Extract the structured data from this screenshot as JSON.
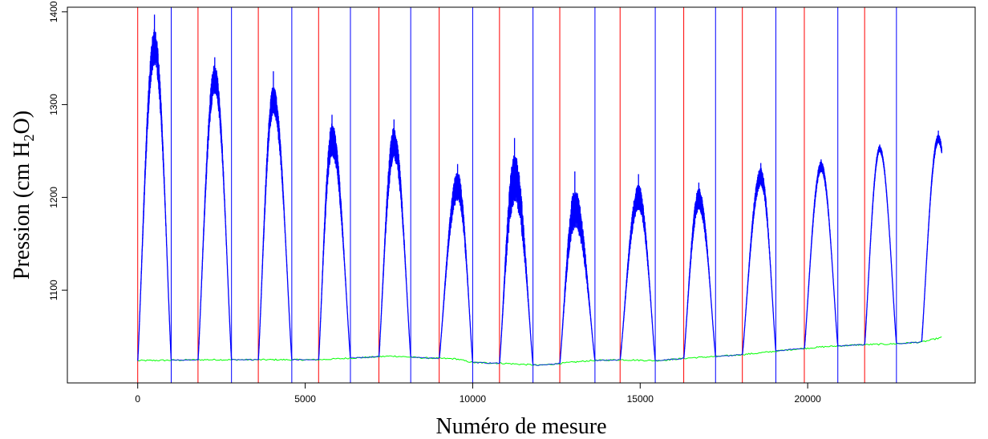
{
  "chart_data": {
    "type": "line",
    "title": "",
    "xlabel": "Numéro de mesure",
    "ylabel_text": "Pression (cm H",
    "ylabel_subscript": "2",
    "ylabel_suffix": "O)",
    "xlim": [
      -2100,
      25000
    ],
    "ylim": [
      1000,
      1405
    ],
    "xticks": [
      0,
      5000,
      10000,
      15000,
      20000
    ],
    "yticks": [
      1100,
      1200,
      1300,
      1400
    ],
    "grid": false,
    "legend": "none",
    "colors": {
      "pressure": "#0000ff",
      "baseline": "#00ff00",
      "cycle_start": "#ff0000",
      "cycle_end": "#0000ff",
      "axis": "#000000"
    },
    "cycle_start_lines": [
      0,
      1800,
      3600,
      5400,
      7200,
      9000,
      10800,
      12600,
      14400,
      16300,
      18050,
      19900,
      21700
    ],
    "cycle_end_lines": [
      1000,
      2800,
      4600,
      6350,
      8150,
      10000,
      11800,
      13650,
      15450,
      17250,
      19050,
      20900,
      22650
    ],
    "series": [
      {
        "kind": "pressure",
        "peaks": [
          {
            "start": 0,
            "peak_x": 500,
            "end": 1000,
            "peak": 1362,
            "spike": 1397,
            "noise": 20
          },
          {
            "start": 1800,
            "peak_x": 2300,
            "end": 2800,
            "peak": 1328,
            "spike": 1351,
            "noise": 16
          },
          {
            "start": 3600,
            "peak_x": 4050,
            "end": 4600,
            "peak": 1305,
            "spike": 1336,
            "noise": 16
          },
          {
            "start": 5400,
            "peak_x": 5800,
            "end": 6350,
            "peak": 1262,
            "spike": 1289,
            "noise": 18
          },
          {
            "start": 7200,
            "peak_x": 7650,
            "end": 8150,
            "peak": 1258,
            "spike": 1284,
            "noise": 18
          },
          {
            "start": 9000,
            "peak_x": 9550,
            "end": 10000,
            "peak": 1212,
            "spike": 1236,
            "noise": 16
          },
          {
            "start": 10800,
            "peak_x": 11250,
            "end": 11800,
            "peak": 1220,
            "spike": 1264,
            "noise": 28
          },
          {
            "start": 12600,
            "peak_x": 13050,
            "end": 13650,
            "peak": 1188,
            "spike": 1228,
            "noise": 22
          },
          {
            "start": 14400,
            "peak_x": 14950,
            "end": 15450,
            "peak": 1200,
            "spike": 1225,
            "noise": 14
          },
          {
            "start": 16300,
            "peak_x": 16750,
            "end": 17250,
            "peak": 1198,
            "spike": 1216,
            "noise": 12
          },
          {
            "start": 18050,
            "peak_x": 18600,
            "end": 19050,
            "peak": 1222,
            "spike": 1237,
            "noise": 10
          },
          {
            "start": 19900,
            "peak_x": 20400,
            "end": 20900,
            "peak": 1233,
            "spike": 1241,
            "noise": 6
          },
          {
            "start": 21700,
            "peak_x": 22150,
            "end": 22650,
            "peak": 1252,
            "spike": 1257,
            "noise": 4
          },
          {
            "start": 23400,
            "peak_x": 23900,
            "end": 24400,
            "peak": 1263,
            "spike": 1272,
            "noise": 5,
            "truncated_at": 24000
          }
        ]
      },
      {
        "kind": "baseline",
        "x": [
          0,
          2000,
          4000,
          5400,
          6500,
          7600,
          8500,
          9500,
          10000,
          11000,
          12000,
          12600,
          13500,
          14400,
          15500,
          16500,
          17500,
          18500,
          19500,
          20500,
          21500,
          22500,
          23400,
          24000
        ],
        "y": [
          1024,
          1025,
          1025,
          1025,
          1027,
          1029,
          1027,
          1026,
          1022,
          1021,
          1019,
          1021,
          1024,
          1025,
          1024,
          1027,
          1029,
          1032,
          1036,
          1039,
          1041,
          1042,
          1044,
          1049
        ]
      }
    ]
  }
}
